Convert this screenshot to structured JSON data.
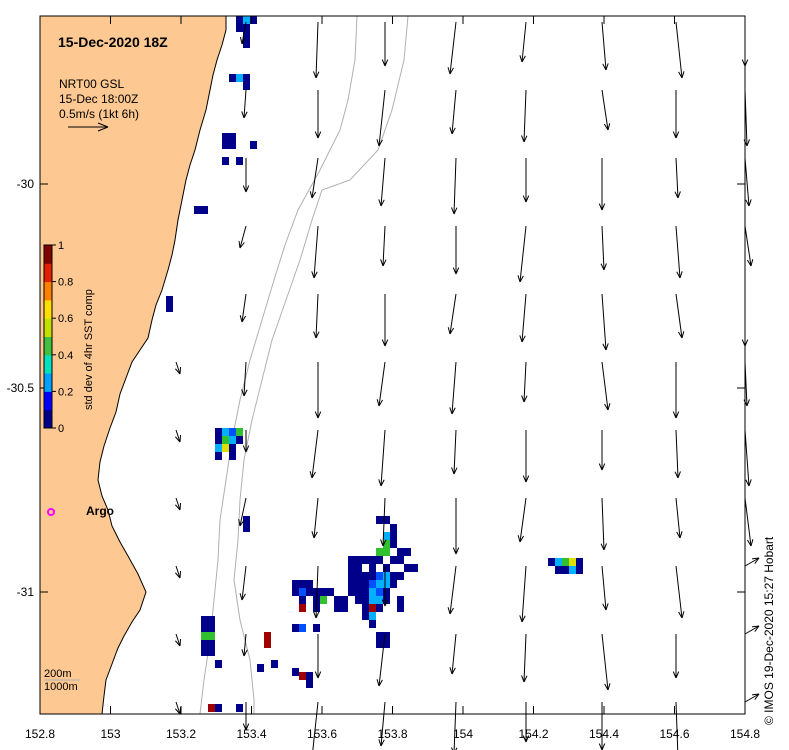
{
  "title": "15-Dec-2020 18Z",
  "current_legend": {
    "source": "NRT00 GSL",
    "time": "15-Dec 18:00Z",
    "scale": "0.5m/s (1kt 6h)"
  },
  "colorbar": {
    "label": "std dev of 4hr SST comp",
    "ticks": [
      "1",
      "0.8",
      "0.6",
      "0.4",
      "0.2",
      "0"
    ],
    "colors": [
      "#00008b",
      "#0000ff",
      "#00a0ff",
      "#00e0c0",
      "#40c040",
      "#c0e000",
      "#ffe000",
      "#ff8000",
      "#e02000",
      "#800000"
    ]
  },
  "x_axis": {
    "ticks": [
      "152.8",
      "153",
      "153.2",
      "153.4",
      "153.6",
      "153.8",
      "154",
      "154.2",
      "154.4",
      "154.6",
      "154.8"
    ]
  },
  "y_axis": {
    "ticks": [
      "-30",
      "-30.5",
      "-31"
    ]
  },
  "argo": {
    "label": "Argo",
    "color": "#ff00ff"
  },
  "isobaths": {
    "label_1": "200m",
    "label_2": "1000m"
  },
  "credit": "© IMOS 19-Dec-2020 15:27 Hobart",
  "colors": {
    "land": "#fdc891",
    "coast": "#000000",
    "isobath": "#b0b0b0",
    "arrow": "#000000"
  }
}
